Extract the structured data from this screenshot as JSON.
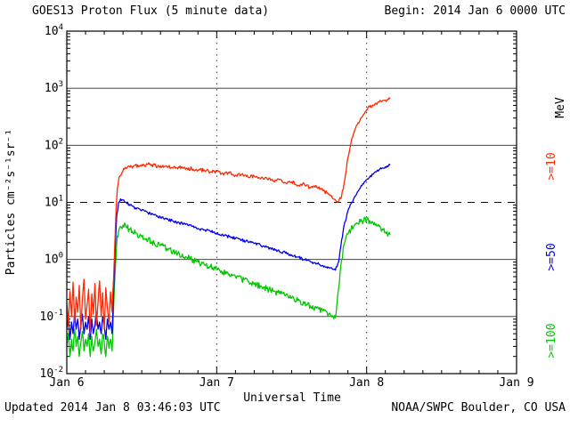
{
  "header": {
    "title": "GOES13 Proton Flux (5 minute data)",
    "begin_label": "Begin: 2014 Jan 6 0000 UTC"
  },
  "footer": {
    "updated": "Updated 2014 Jan 8 03:46:03 UTC",
    "credit": "NOAA/SWPC Boulder, CO USA"
  },
  "chart_data": {
    "type": "line",
    "title": "GOES13 Proton Flux (5 minute data)",
    "xlabel": "Universal Time",
    "ylabel": "Particles cm⁻²s⁻¹sr⁻¹",
    "right_axis_unit": "MeV",
    "x_axis": {
      "start_label": "Begin: 2014 Jan 6 0000 UTC",
      "span_hours": 72,
      "ticks": [
        {
          "hour": 0,
          "label": "Jan 6"
        },
        {
          "hour": 24,
          "label": "Jan 7"
        },
        {
          "hour": 48,
          "label": "Jan 8"
        },
        {
          "hour": 72,
          "label": "Jan 9"
        }
      ],
      "minor_tick_hours": 3,
      "day_gridline_hours": [
        24,
        48
      ]
    },
    "y_axis": {
      "scale": "log10",
      "ylim": [
        0.01,
        10000
      ],
      "tick_exponents": [
        -2,
        -1,
        0,
        1,
        2,
        3,
        4
      ]
    },
    "threshold_line": {
      "value": 10,
      "style": "dashed"
    },
    "grid": "decade-horizontal",
    "legend_position": "right-rotated",
    "series": [
      {
        "name": ">=10",
        "color": "#ff2800",
        "jitter_log": 0.03,
        "points_hour_flux": [
          [
            0,
            0.18
          ],
          [
            0.25,
            0.07
          ],
          [
            0.5,
            0.28
          ],
          [
            0.75,
            0.1
          ],
          [
            1,
            0.4
          ],
          [
            1.25,
            0.08
          ],
          [
            1.5,
            0.22
          ],
          [
            1.75,
            0.12
          ],
          [
            2,
            0.35
          ],
          [
            2.25,
            0.06
          ],
          [
            2.5,
            0.2
          ],
          [
            2.75,
            0.45
          ],
          [
            3,
            0.09
          ],
          [
            3.25,
            0.16
          ],
          [
            3.5,
            0.3
          ],
          [
            3.75,
            0.05
          ],
          [
            4,
            0.25
          ],
          [
            4.25,
            0.11
          ],
          [
            4.5,
            0.38
          ],
          [
            4.75,
            0.07
          ],
          [
            5,
            0.18
          ],
          [
            5.25,
            0.42
          ],
          [
            5.5,
            0.1
          ],
          [
            5.75,
            0.26
          ],
          [
            6,
            0.06
          ],
          [
            6.25,
            0.32
          ],
          [
            6.5,
            0.14
          ],
          [
            6.75,
            0.08
          ],
          [
            7,
            0.27
          ],
          [
            7.25,
            0.12
          ],
          [
            7.5,
            0.5
          ],
          [
            7.7,
            2
          ],
          [
            7.9,
            8
          ],
          [
            8.1,
            18
          ],
          [
            8.4,
            28
          ],
          [
            8.8,
            33
          ],
          [
            9.2,
            38
          ],
          [
            9.6,
            40
          ],
          [
            10,
            43
          ],
          [
            10.5,
            40
          ],
          [
            11,
            45
          ],
          [
            11.5,
            42
          ],
          [
            12,
            46
          ],
          [
            12.5,
            43
          ],
          [
            13,
            47
          ],
          [
            13.5,
            44
          ],
          [
            14,
            46
          ],
          [
            14.5,
            42
          ],
          [
            15,
            44
          ],
          [
            15.5,
            41
          ],
          [
            16,
            43
          ],
          [
            17,
            40
          ],
          [
            18,
            41
          ],
          [
            19,
            38
          ],
          [
            20,
            39
          ],
          [
            21,
            36
          ],
          [
            22,
            37
          ],
          [
            23,
            34
          ],
          [
            24,
            35
          ],
          [
            25,
            32
          ],
          [
            26,
            33
          ],
          [
            27,
            30
          ],
          [
            28,
            31
          ],
          [
            29,
            28
          ],
          [
            30,
            29
          ],
          [
            31,
            26
          ],
          [
            32,
            27
          ],
          [
            33,
            24
          ],
          [
            34,
            25
          ],
          [
            35,
            22
          ],
          [
            36,
            23
          ],
          [
            37,
            20
          ],
          [
            38,
            21
          ],
          [
            39,
            18
          ],
          [
            40,
            19
          ],
          [
            41,
            16
          ],
          [
            42,
            14
          ],
          [
            42.5,
            12
          ],
          [
            43,
            11
          ],
          [
            43.5,
            10.5
          ],
          [
            44,
            13
          ],
          [
            44.5,
            25
          ],
          [
            45,
            60
          ],
          [
            45.5,
            110
          ],
          [
            46,
            170
          ],
          [
            46.5,
            230
          ],
          [
            47,
            290
          ],
          [
            47.5,
            350
          ],
          [
            48,
            420
          ],
          [
            48.5,
            470
          ],
          [
            49,
            510
          ],
          [
            49.5,
            545
          ],
          [
            50,
            575
          ],
          [
            50.5,
            600
          ],
          [
            51,
            620
          ],
          [
            51.5,
            640
          ],
          [
            51.75,
            650
          ]
        ]
      },
      {
        "name": ">=50",
        "color": "#0000ee",
        "jitter_log": 0.025,
        "points_hour_flux": [
          [
            0,
            0.06
          ],
          [
            0.25,
            0.1
          ],
          [
            0.5,
            0.04
          ],
          [
            0.75,
            0.08
          ],
          [
            1,
            0.05
          ],
          [
            1.25,
            0.12
          ],
          [
            1.5,
            0.06
          ],
          [
            1.75,
            0.09
          ],
          [
            2,
            0.04
          ],
          [
            2.25,
            0.07
          ],
          [
            2.5,
            0.11
          ],
          [
            2.75,
            0.05
          ],
          [
            3,
            0.08
          ],
          [
            3.25,
            0.06
          ],
          [
            3.5,
            0.1
          ],
          [
            3.75,
            0.04
          ],
          [
            4,
            0.09
          ],
          [
            4.25,
            0.05
          ],
          [
            4.5,
            0.07
          ],
          [
            4.75,
            0.12
          ],
          [
            5,
            0.06
          ],
          [
            5.25,
            0.08
          ],
          [
            5.5,
            0.05
          ],
          [
            5.75,
            0.1
          ],
          [
            6,
            0.07
          ],
          [
            6.25,
            0.04
          ],
          [
            6.5,
            0.09
          ],
          [
            6.75,
            0.06
          ],
          [
            7,
            0.08
          ],
          [
            7.25,
            0.05
          ],
          [
            7.5,
            0.3
          ],
          [
            7.8,
            2
          ],
          [
            8,
            6
          ],
          [
            8.3,
            10
          ],
          [
            8.6,
            11.5
          ],
          [
            9,
            11
          ],
          [
            9.5,
            10
          ],
          [
            10,
            9.2
          ],
          [
            10.5,
            8.6
          ],
          [
            11,
            8
          ],
          [
            12,
            7.2
          ],
          [
            13,
            6.5
          ],
          [
            14,
            6
          ],
          [
            15,
            5.5
          ],
          [
            16,
            5.1
          ],
          [
            17,
            4.7
          ],
          [
            18,
            4.4
          ],
          [
            19,
            4.1
          ],
          [
            20,
            3.8
          ],
          [
            21,
            3.5
          ],
          [
            22,
            3.3
          ],
          [
            23,
            3.1
          ],
          [
            24,
            2.9
          ],
          [
            25,
            2.7
          ],
          [
            26,
            2.5
          ],
          [
            27,
            2.35
          ],
          [
            28,
            2.2
          ],
          [
            29,
            2.05
          ],
          [
            30,
            1.9
          ],
          [
            31,
            1.78
          ],
          [
            32,
            1.65
          ],
          [
            33,
            1.52
          ],
          [
            34,
            1.4
          ],
          [
            35,
            1.3
          ],
          [
            36,
            1.2
          ],
          [
            37,
            1.1
          ],
          [
            38,
            1.0
          ],
          [
            39,
            0.92
          ],
          [
            40,
            0.85
          ],
          [
            41,
            0.78
          ],
          [
            42,
            0.72
          ],
          [
            42.5,
            0.68
          ],
          [
            43,
            0.65
          ],
          [
            43.5,
            0.9
          ],
          [
            44,
            2.2
          ],
          [
            44.5,
            4.5
          ],
          [
            45,
            7
          ],
          [
            45.5,
            9.5
          ],
          [
            46,
            12
          ],
          [
            46.5,
            15
          ],
          [
            47,
            18
          ],
          [
            47.5,
            21
          ],
          [
            48,
            25
          ],
          [
            48.5,
            28
          ],
          [
            49,
            31
          ],
          [
            49.5,
            34
          ],
          [
            50,
            37
          ],
          [
            50.5,
            40
          ],
          [
            51,
            42
          ],
          [
            51.5,
            44
          ],
          [
            51.75,
            45
          ]
        ]
      },
      {
        "name": ">=100",
        "color": "#00c800",
        "jitter_log": 0.055,
        "points_hour_flux": [
          [
            0,
            0.03
          ],
          [
            0.25,
            0.05
          ],
          [
            0.5,
            0.02
          ],
          [
            0.75,
            0.04
          ],
          [
            1,
            0.025
          ],
          [
            1.25,
            0.06
          ],
          [
            1.5,
            0.03
          ],
          [
            1.75,
            0.045
          ],
          [
            2,
            0.02
          ],
          [
            2.25,
            0.035
          ],
          [
            2.5,
            0.055
          ],
          [
            2.75,
            0.025
          ],
          [
            3,
            0.04
          ],
          [
            3.25,
            0.03
          ],
          [
            3.5,
            0.05
          ],
          [
            3.75,
            0.02
          ],
          [
            4,
            0.045
          ],
          [
            4.25,
            0.025
          ],
          [
            4.5,
            0.035
          ],
          [
            4.75,
            0.06
          ],
          [
            5,
            0.03
          ],
          [
            5.25,
            0.04
          ],
          [
            5.5,
            0.022
          ],
          [
            5.75,
            0.05
          ],
          [
            6,
            0.035
          ],
          [
            6.25,
            0.02
          ],
          [
            6.5,
            0.045
          ],
          [
            6.75,
            0.028
          ],
          [
            7,
            0.04
          ],
          [
            7.25,
            0.025
          ],
          [
            7.5,
            0.15
          ],
          [
            7.8,
            0.8
          ],
          [
            8,
            2
          ],
          [
            8.3,
            3.2
          ],
          [
            8.6,
            3.8
          ],
          [
            9,
            4
          ],
          [
            9.5,
            3.7
          ],
          [
            10,
            3.4
          ],
          [
            10.5,
            3.1
          ],
          [
            11,
            2.9
          ],
          [
            12,
            2.5
          ],
          [
            13,
            2.2
          ],
          [
            14,
            1.95
          ],
          [
            15,
            1.75
          ],
          [
            16,
            1.55
          ],
          [
            17,
            1.4
          ],
          [
            18,
            1.25
          ],
          [
            19,
            1.12
          ],
          [
            20,
            1.0
          ],
          [
            21,
            0.9
          ],
          [
            22,
            0.82
          ],
          [
            23,
            0.74
          ],
          [
            24,
            0.67
          ],
          [
            25,
            0.6
          ],
          [
            26,
            0.55
          ],
          [
            27,
            0.5
          ],
          [
            28,
            0.45
          ],
          [
            29,
            0.41
          ],
          [
            30,
            0.37
          ],
          [
            31,
            0.34
          ],
          [
            32,
            0.31
          ],
          [
            33,
            0.28
          ],
          [
            34,
            0.255
          ],
          [
            35,
            0.23
          ],
          [
            36,
            0.21
          ],
          [
            37,
            0.19
          ],
          [
            38,
            0.17
          ],
          [
            39,
            0.155
          ],
          [
            40,
            0.14
          ],
          [
            41,
            0.125
          ],
          [
            42,
            0.115
          ],
          [
            42.5,
            0.105
          ],
          [
            43,
            0.095
          ],
          [
            43.5,
            0.3
          ],
          [
            44,
            1.0
          ],
          [
            44.5,
            2.0
          ],
          [
            45,
            2.8
          ],
          [
            45.5,
            3.4
          ],
          [
            46,
            3.9
          ],
          [
            46.5,
            4.3
          ],
          [
            47,
            4.6
          ],
          [
            47.5,
            4.8
          ],
          [
            48,
            4.9
          ],
          [
            48.5,
            4.8
          ],
          [
            49,
            4.5
          ],
          [
            49.5,
            4.2
          ],
          [
            50,
            3.8
          ],
          [
            50.5,
            3.4
          ],
          [
            51,
            3.0
          ],
          [
            51.5,
            2.8
          ],
          [
            51.75,
            2.7
          ]
        ]
      }
    ]
  }
}
